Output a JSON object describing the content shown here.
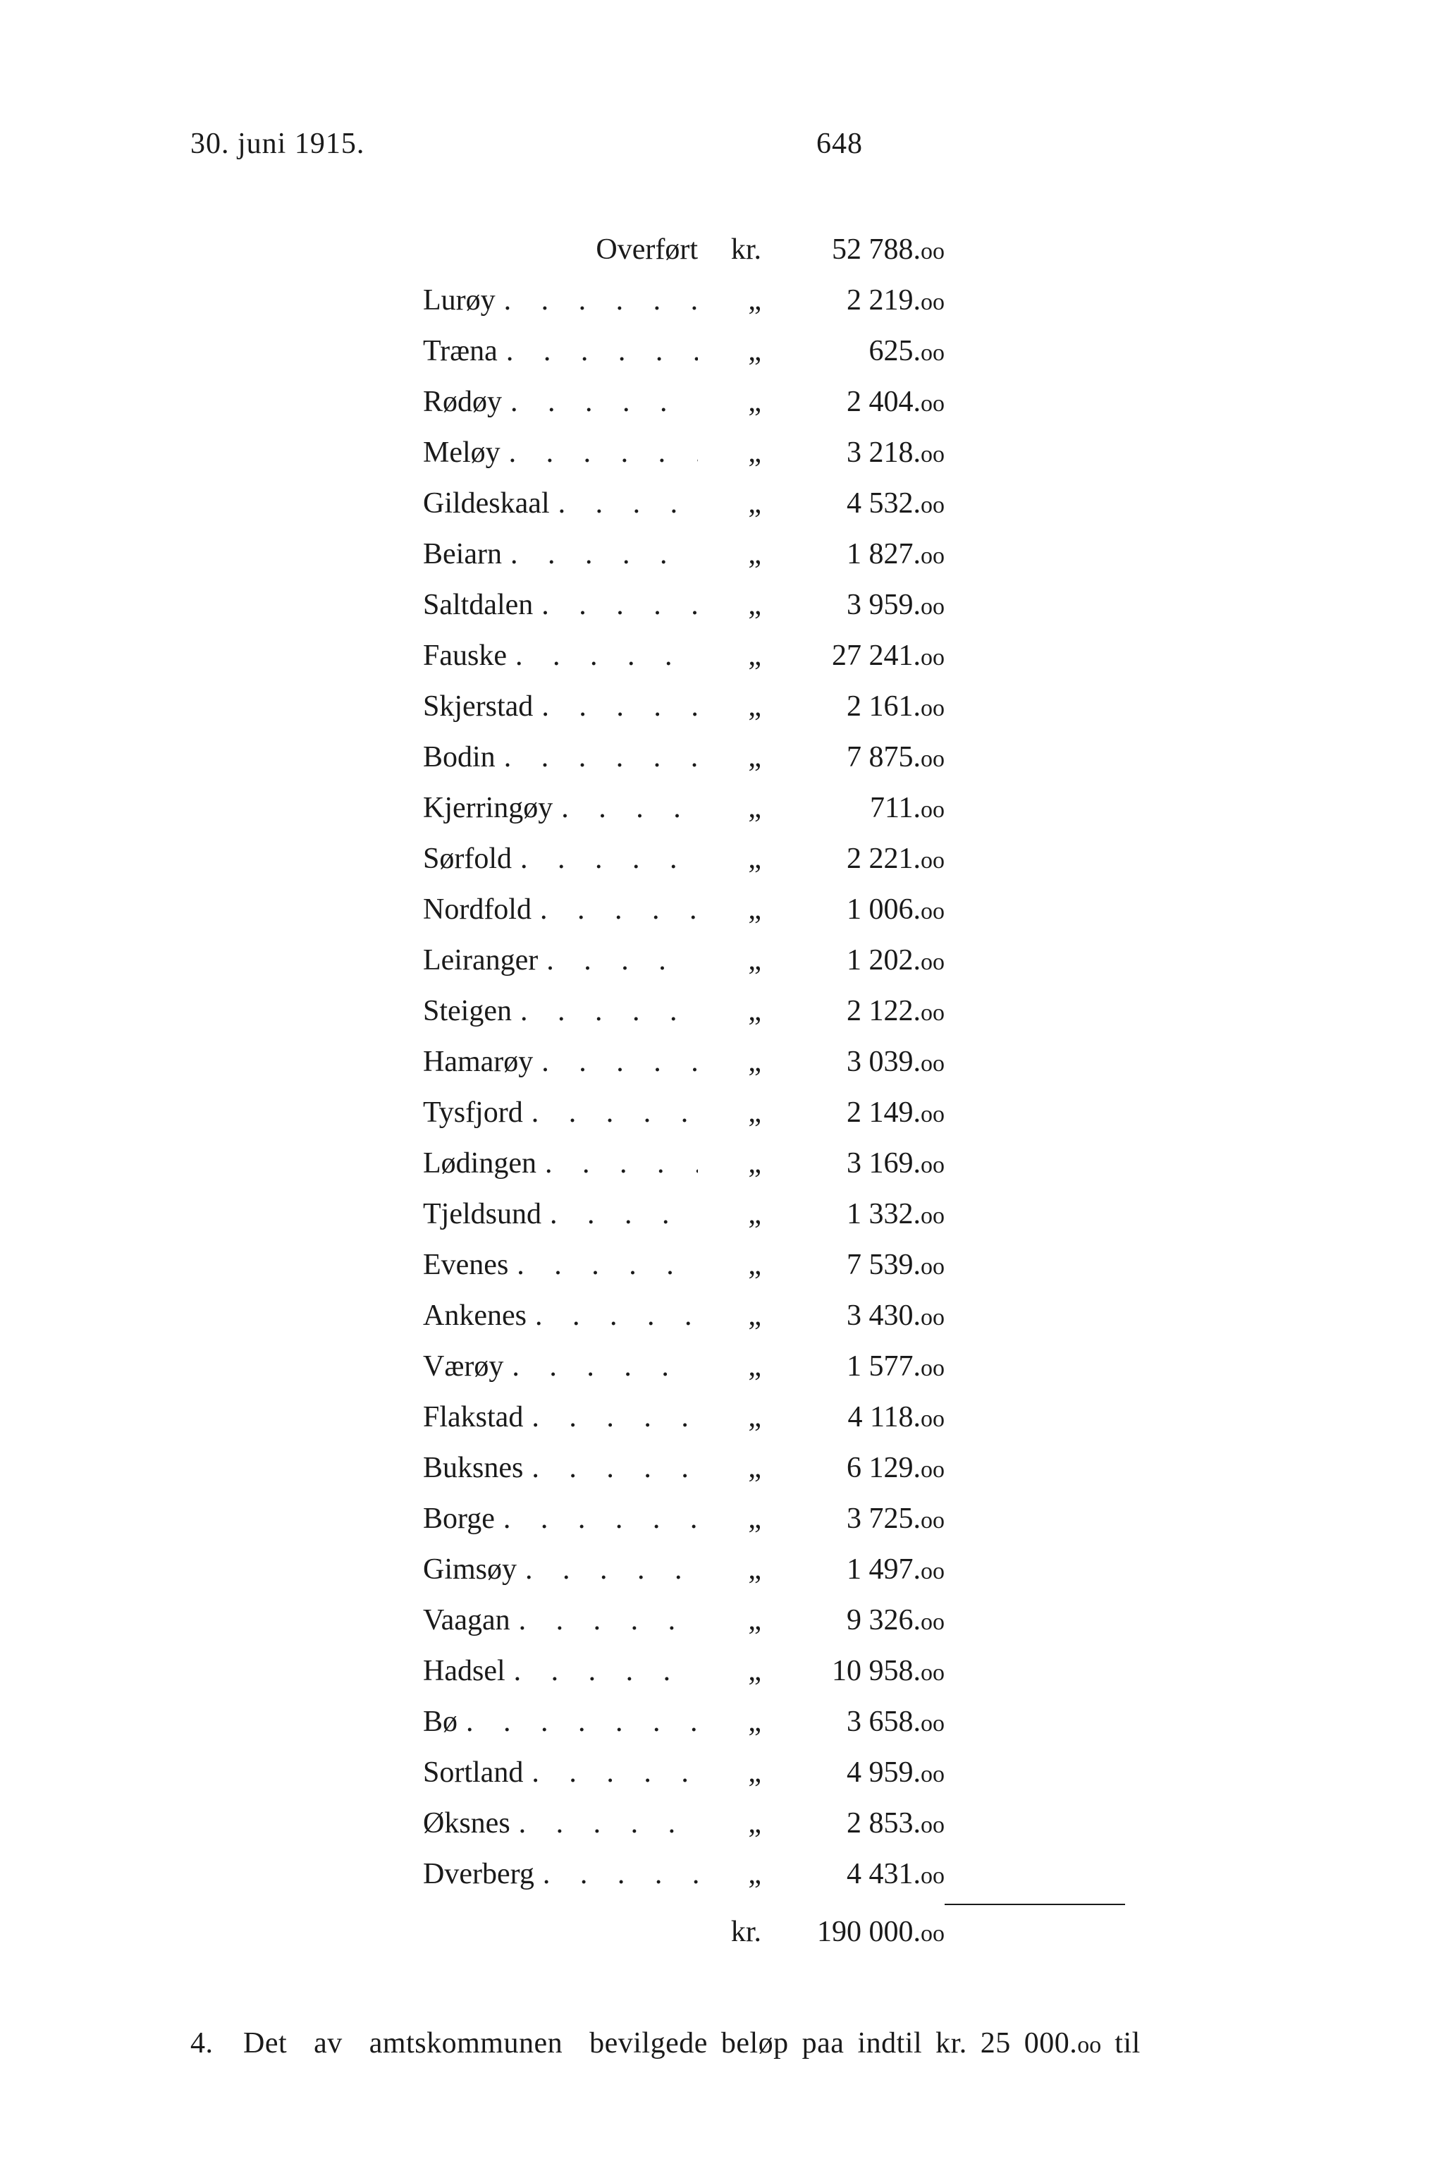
{
  "page": {
    "date": "30. juni 1915.",
    "number": "648"
  },
  "table": {
    "overfort_label": "Overført",
    "currency_kr": "kr.",
    "currency_ditto": "„",
    "overfort_amount_int": "52 788.",
    "overfort_amount_dec": "oo",
    "rows": [
      {
        "label": "Lurøy",
        "int": "2 219.",
        "dec": "oo"
      },
      {
        "label": "Træna",
        "int": "625.",
        "dec": "oo"
      },
      {
        "label": "Rødøy",
        "int": "2 404.",
        "dec": "oo"
      },
      {
        "label": "Meløy",
        "int": "3 218.",
        "dec": "oo"
      },
      {
        "label": "Gildeskaal",
        "int": "4 532.",
        "dec": "oo"
      },
      {
        "label": "Beiarn",
        "int": "1 827.",
        "dec": "oo"
      },
      {
        "label": "Saltdalen",
        "int": "3 959.",
        "dec": "oo"
      },
      {
        "label": "Fauske",
        "int": "27 241.",
        "dec": "oo"
      },
      {
        "label": "Skjerstad",
        "int": "2 161.",
        "dec": "oo"
      },
      {
        "label": "Bodin",
        "int": "7 875.",
        "dec": "oo"
      },
      {
        "label": "Kjerringøy",
        "int": "711.",
        "dec": "oo"
      },
      {
        "label": "Sørfold",
        "int": "2 221.",
        "dec": "oo"
      },
      {
        "label": "Nordfold",
        "int": "1 006.",
        "dec": "oo"
      },
      {
        "label": "Leiranger",
        "int": "1 202.",
        "dec": "oo"
      },
      {
        "label": "Steigen",
        "int": "2 122.",
        "dec": "oo"
      },
      {
        "label": "Hamarøy",
        "int": "3 039.",
        "dec": "oo"
      },
      {
        "label": "Tysfjord",
        "int": "2 149.",
        "dec": "oo"
      },
      {
        "label": "Lødingen",
        "int": "3 169.",
        "dec": "oo"
      },
      {
        "label": "Tjeldsund",
        "int": "1 332.",
        "dec": "oo"
      },
      {
        "label": "Evenes",
        "int": "7 539.",
        "dec": "oo"
      },
      {
        "label": "Ankenes",
        "int": "3 430.",
        "dec": "oo"
      },
      {
        "label": "Værøy",
        "int": "1 577.",
        "dec": "oo"
      },
      {
        "label": "Flakstad",
        "int": "4 118.",
        "dec": "oo"
      },
      {
        "label": "Buksnes",
        "int": "6 129.",
        "dec": "oo"
      },
      {
        "label": "Borge",
        "int": "3 725.",
        "dec": "oo"
      },
      {
        "label": "Gimsøy",
        "int": "1 497.",
        "dec": "oo"
      },
      {
        "label": "Vaagan",
        "int": "9 326.",
        "dec": "oo"
      },
      {
        "label": "Hadsel",
        "int": "10 958.",
        "dec": "oo"
      },
      {
        "label": "Bø",
        "int": "3 658.",
        "dec": "oo"
      },
      {
        "label": "Sortland",
        "int": "4 959.",
        "dec": "oo"
      },
      {
        "label": "Øksnes",
        "int": "2 853.",
        "dec": "oo"
      },
      {
        "label": "Dverberg",
        "int": "4 431.",
        "dec": "oo"
      }
    ],
    "total_int": "190 000.",
    "total_dec": "oo"
  },
  "footer": {
    "text_pre": "4. Det  av  amtskommunen  bevilgede beløp paa indtil kr. 25 000.",
    "text_dec": "oo",
    "text_post": " til"
  },
  "dots": ". . . . . . . . . ."
}
